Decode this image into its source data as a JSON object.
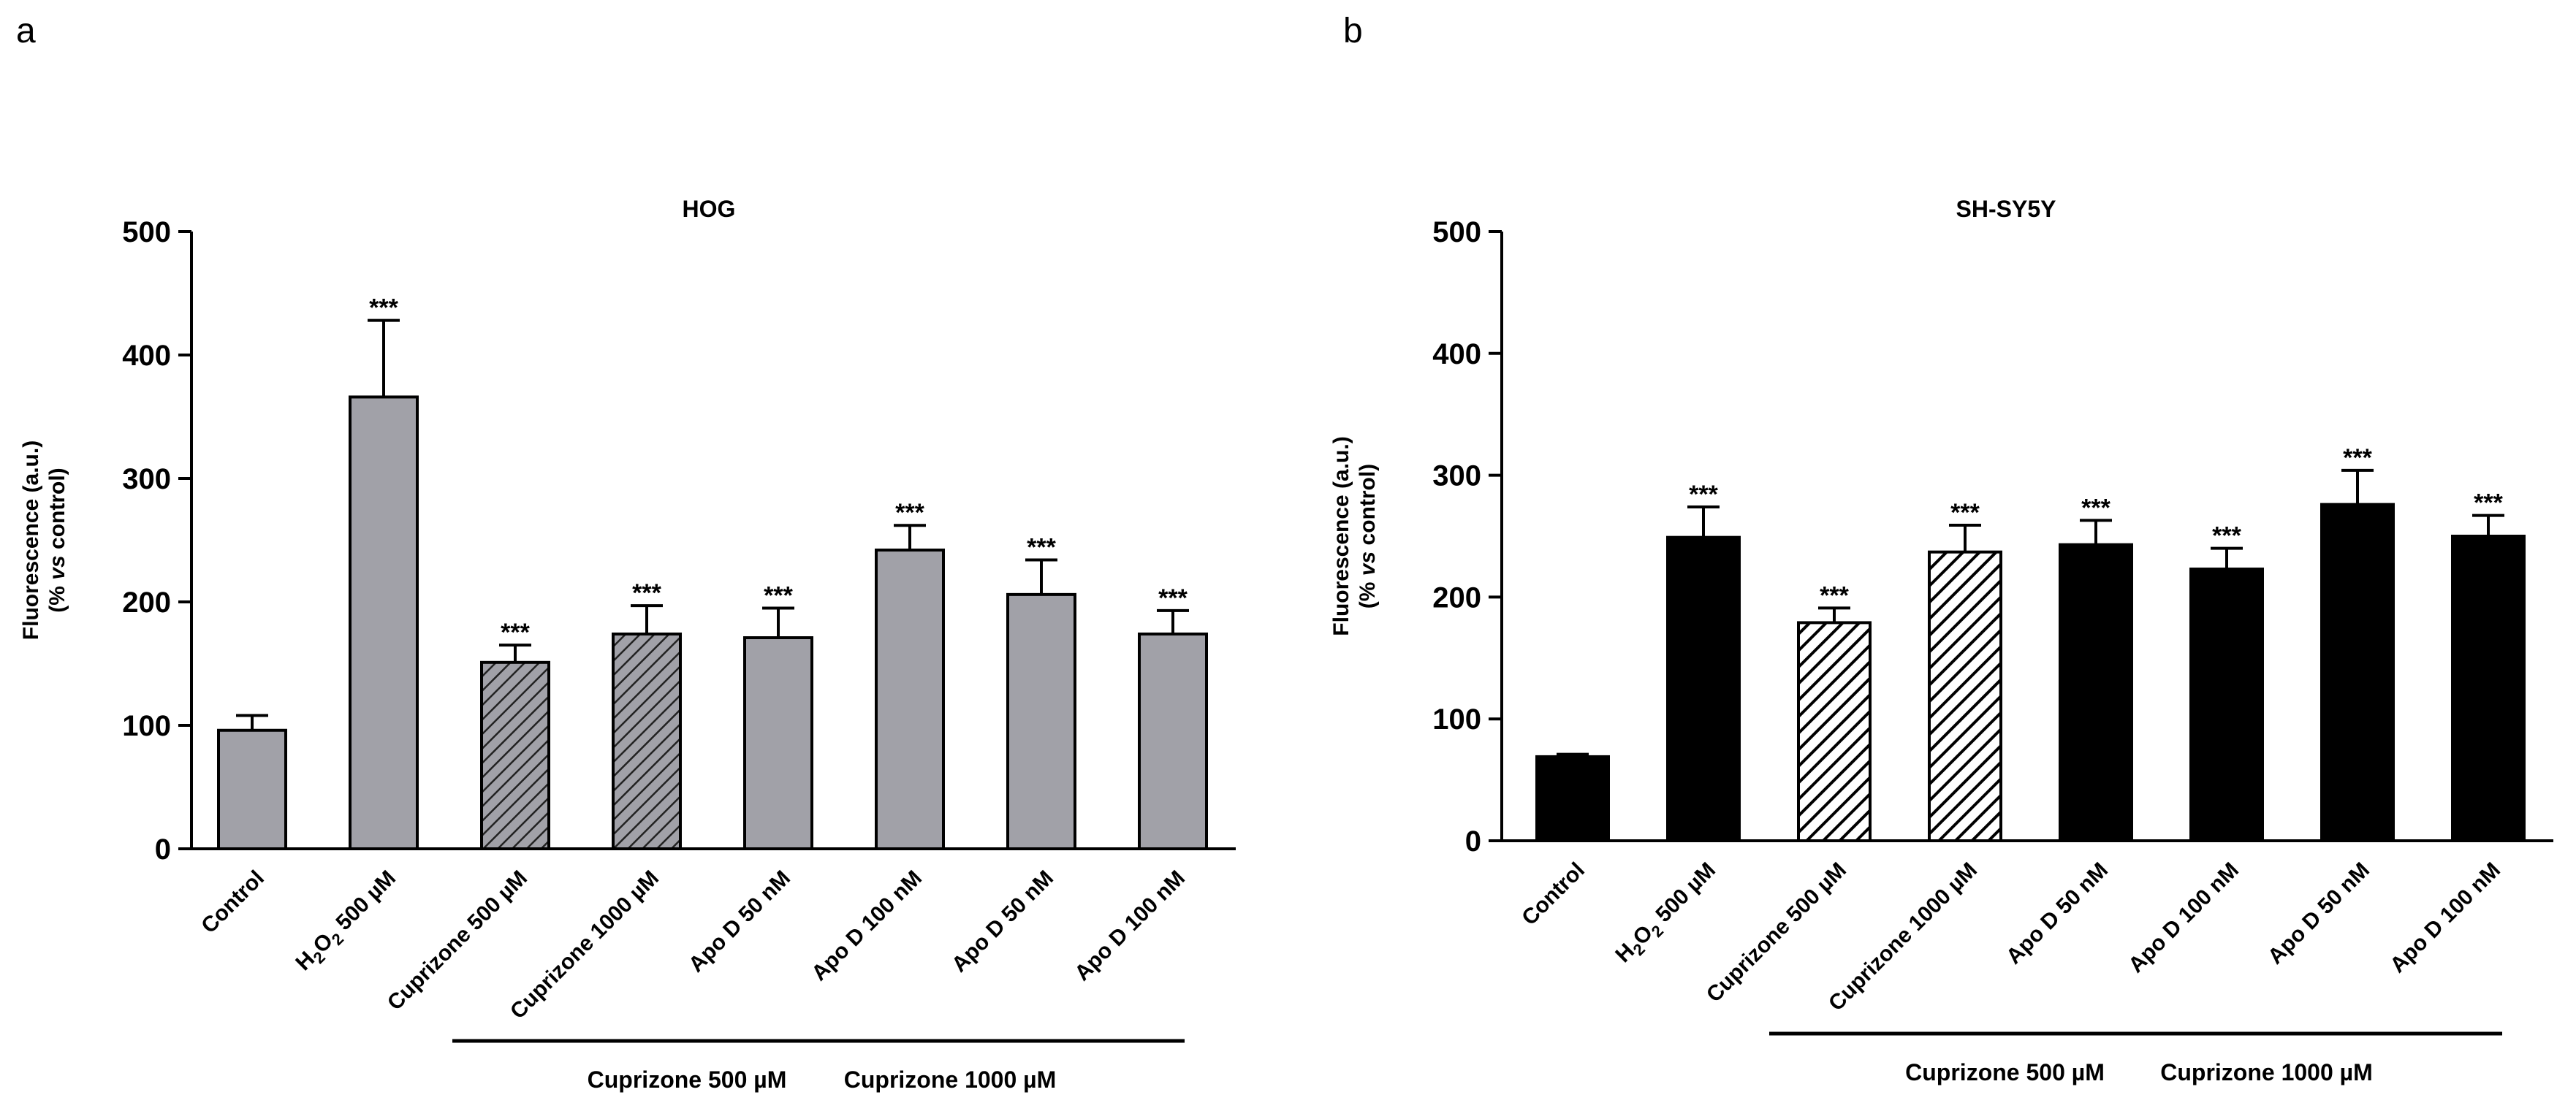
{
  "chart_data": [
    {
      "panel": "a",
      "type": "bar",
      "title": "HOG",
      "ylabel_line1": "Fluorescence (a.u.)",
      "ylabel_line2_a": "(% ",
      "ylabel_line2_b": "vs",
      "ylabel_line2_c": " control)",
      "ylim": [
        0,
        500
      ],
      "yticks": [
        0,
        100,
        200,
        300,
        400,
        500
      ],
      "categories": [
        "Control",
        "H2O2 500 µM",
        "Cuprizone 500 µM",
        "Cuprizone 1000 µM",
        "Apo D 50 nM",
        "Apo D 100 nM",
        "Apo D 50 nM",
        "Apo D 100 nM"
      ],
      "values": [
        96,
        366,
        151,
        174,
        171,
        242,
        206,
        174
      ],
      "errors": [
        12,
        62,
        14,
        23,
        24,
        20,
        28,
        19
      ],
      "significance": [
        "",
        "***",
        "***",
        "***",
        "***",
        "***",
        "***",
        "***"
      ],
      "hatched": [
        false,
        false,
        true,
        true,
        false,
        false,
        false,
        false
      ],
      "bar_color": "#a1a1a8",
      "groups": [
        {
          "label": "Cuprizone 500 µM",
          "from": 4,
          "to": 5
        },
        {
          "label": "Cuprizone 1000 µM",
          "from": 6,
          "to": 7
        }
      ]
    },
    {
      "panel": "b",
      "type": "bar",
      "title": "SH-SY5Y",
      "ylabel_line1": "Fluorescence (a.u.)",
      "ylabel_line2_a": "(% ",
      "ylabel_line2_b": "vs",
      "ylabel_line2_c": " control)",
      "ylim": [
        0,
        500
      ],
      "yticks": [
        0,
        100,
        200,
        300,
        400,
        500
      ],
      "categories": [
        "Control",
        "H2O2 500 µM",
        "Cuprizone 500 µM",
        "Cuprizone 1000 µM",
        "Apo D 50 nM",
        "Apo D 100 nM",
        "Apo D 50 nM",
        "Apo D 100 nM"
      ],
      "values": [
        69,
        249,
        179,
        237,
        243,
        223,
        276,
        250
      ],
      "errors": [
        2,
        25,
        12,
        22,
        20,
        17,
        28,
        17
      ],
      "significance": [
        "",
        "***",
        "***",
        "***",
        "***",
        "***",
        "***",
        "***"
      ],
      "hatched": [
        false,
        false,
        true,
        true,
        false,
        false,
        false,
        false
      ],
      "bar_color": "#000000",
      "groups": [
        {
          "label": "Cuprizone 500 µM",
          "from": 4,
          "to": 5
        },
        {
          "label": "Cuprizone 1000 µM",
          "from": 6,
          "to": 7
        }
      ]
    }
  ]
}
